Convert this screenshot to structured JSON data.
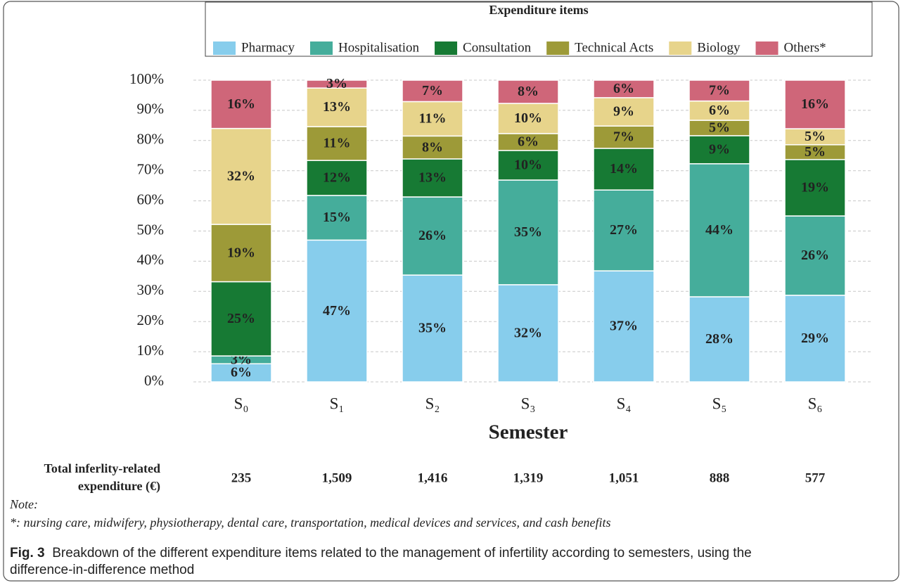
{
  "chart_data": {
    "type": "stacked_bar",
    "legend_title": "Expenditure items",
    "x_label": "Semester",
    "categories": [
      "S₀",
      "S₁",
      "S₂",
      "S₃",
      "S₄",
      "S₅",
      "S₆"
    ],
    "series": [
      {
        "name": "Pharmacy",
        "color": "#87cdec",
        "values": [
          6,
          47,
          35.4,
          32.2,
          36.8,
          28.2,
          28.7
        ],
        "value_labels": [
          "6%",
          "47%",
          "35%",
          "32%",
          "37%",
          "28%",
          "29%"
        ]
      },
      {
        "name": "Hospitalisation",
        "color": "#45ad9b",
        "values": [
          2.6,
          14.8,
          25.9,
          34.7,
          26.8,
          44.1,
          26.3
        ],
        "value_labels": [
          "3%",
          "15%",
          "26%",
          "35%",
          "27%",
          "44%",
          "26%"
        ]
      },
      {
        "name": "Consultation",
        "color": "#177a34",
        "values": [
          24.6,
          11.6,
          12.6,
          9.8,
          13.8,
          9.3,
          18.7
        ],
        "value_labels": [
          "25%",
          "12%",
          "13%",
          "10%",
          "14%",
          "9%",
          "19%"
        ]
      },
      {
        "name": "Technical Acts",
        "color": "#9d9a38",
        "values": [
          19,
          11.2,
          7.6,
          5.6,
          7.4,
          5.1,
          4.9
        ],
        "value_labels": [
          "19%",
          "11%",
          "8%",
          "6%",
          "7%",
          "5%",
          "5%"
        ]
      },
      {
        "name": "Biology",
        "color": "#e7d48b",
        "values": [
          31.8,
          12.8,
          11.4,
          10,
          9.4,
          6.4,
          5.3
        ],
        "value_labels": [
          "32%",
          "13%",
          "11%",
          "10%",
          "9%",
          "6%",
          "5%"
        ]
      },
      {
        "name": "Others*",
        "color": "#cf6679",
        "values": [
          16,
          2.6,
          7.1,
          7.7,
          5.8,
          6.9,
          16.1
        ],
        "value_labels": [
          "16%",
          "3%",
          "7%",
          "8%",
          "6%",
          "7%",
          "16%"
        ]
      }
    ],
    "ylim": [
      0,
      100
    ],
    "yticks": [
      {
        "value": 0,
        "label": "0%"
      },
      {
        "value": 10,
        "label": "10%"
      },
      {
        "value": 20,
        "label": "20%"
      },
      {
        "value": 30,
        "label": "30%"
      },
      {
        "value": 40,
        "label": "40%"
      },
      {
        "value": 50,
        "label": "50%"
      },
      {
        "value": 60,
        "label": "60%"
      },
      {
        "value": 70,
        "label": "70%"
      },
      {
        "value": 80,
        "label": "80%"
      },
      {
        "value": 90,
        "label": "90%"
      },
      {
        "value": 100,
        "label": "100%"
      }
    ],
    "grid": true
  },
  "totals": {
    "label": [
      "Total inferlity-related",
      "expenditure (€)"
    ],
    "values": [
      235,
      1509,
      1416,
      1319,
      1051,
      888,
      577
    ],
    "value_labels": [
      "235",
      "1,509",
      "1,416",
      "1,319",
      "1,051",
      "888",
      "577"
    ]
  },
  "note_heading": "Note:",
  "note": "*: nursing care, midwifery, physiotherapy, dental care, transportation, medical devices and services, and cash benefits",
  "caption": {
    "label": "Fig. 3",
    "text": "Breakdown of the different expenditure items related to the management of infertility according to semesters, using the difference-in-difference method"
  }
}
